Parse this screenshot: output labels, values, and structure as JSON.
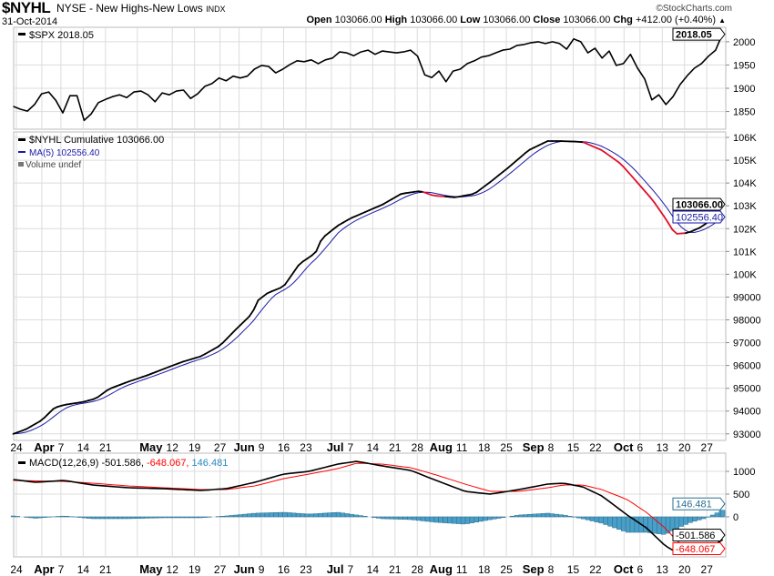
{
  "header": {
    "symbol": "$NYHL",
    "name": "NYSE - New Highs-New Lows",
    "exchange": "INDX",
    "date": "31-Oct-2014",
    "copyright": "©StockCharts.com",
    "open_label": "Open",
    "open": "103066.00",
    "high_label": "High",
    "high": "103066.00",
    "low_label": "Low",
    "low": "103066.00",
    "close_label": "Close",
    "close": "103066.00",
    "chg_label": "Chg",
    "chg": "+412.00 (+0.40%)",
    "chg_icon": "up-triangle-icon"
  },
  "colors": {
    "price": "#000000",
    "ma": "#1a1aa8",
    "below_ma": "#e0102a",
    "signal": "#ff0000",
    "histogram": "#4a9fc8",
    "grid": "#dcdcdc"
  },
  "chart_data": [
    {
      "type": "line",
      "panel": "spx",
      "legend": "$SPX 2018.05",
      "last_label": "2018.05",
      "ylim": [
        1812,
        2031
      ],
      "yticks": [
        1850,
        1900,
        1950,
        2000
      ],
      "x_domain_days": [
        -1,
        222
      ],
      "values": [
        1861,
        1855,
        1851,
        1865,
        1888,
        1892,
        1874,
        1847,
        1884,
        1884,
        1831,
        1845,
        1869,
        1876,
        1882,
        1886,
        1880,
        1892,
        1894,
        1886,
        1871,
        1890,
        1886,
        1894,
        1896,
        1878,
        1888,
        1904,
        1910,
        1922,
        1916,
        1926,
        1922,
        1926,
        1941,
        1949,
        1947,
        1933,
        1941,
        1951,
        1959,
        1957,
        1961,
        1953,
        1961,
        1965,
        1978,
        1976,
        1970,
        1978,
        1982,
        1973,
        1980,
        1978,
        1976,
        1978,
        1982,
        1969,
        1929,
        1923,
        1937,
        1914,
        1937,
        1941,
        1953,
        1959,
        1967,
        1970,
        1976,
        1982,
        1984,
        1992,
        1994,
        1998,
        2000,
        1996,
        2000,
        1996,
        1984,
        2006,
        2000,
        1976,
        1986,
        1965,
        1980,
        1949,
        1953,
        1973,
        1943,
        1920,
        1875,
        1886,
        1865,
        1882,
        1908,
        1927,
        1943,
        1953,
        1969,
        1982,
        2018.05
      ]
    },
    {
      "type": "line",
      "panel": "nyhl",
      "legend": "$NYHL Cumulative 103066.00",
      "ma_legend": "MA(5) 102556.40",
      "volume_legend": "Volume undef",
      "last_label": "103066.00",
      "ma_last_label": "102556.40",
      "ylim": [
        92713,
        106240
      ],
      "yticks": [
        {
          "v": 93000,
          "t": "93000"
        },
        {
          "v": 94000,
          "t": "94000"
        },
        {
          "v": 95000,
          "t": "95000"
        },
        {
          "v": 96000,
          "t": "96000"
        },
        {
          "v": 97000,
          "t": "97000"
        },
        {
          "v": 98000,
          "t": "98000"
        },
        {
          "v": 99000,
          "t": "99000"
        },
        {
          "v": 100000,
          "t": "100K"
        },
        {
          "v": 101000,
          "t": "101K"
        },
        {
          "v": 102000,
          "t": "102K"
        },
        {
          "v": 103000,
          "t": "103K"
        },
        {
          "v": 104000,
          "t": "104K"
        },
        {
          "v": 105000,
          "t": "105K"
        },
        {
          "v": 106000,
          "t": "106K"
        }
      ],
      "points": [
        [
          -1,
          93000
        ],
        [
          3,
          93200
        ],
        [
          8,
          93600
        ],
        [
          12,
          94150
        ],
        [
          15,
          94270
        ],
        [
          21,
          94400
        ],
        [
          25,
          94550
        ],
        [
          29,
          94960
        ],
        [
          35,
          95280
        ],
        [
          41,
          95560
        ],
        [
          46,
          95830
        ],
        [
          52,
          96150
        ],
        [
          58,
          96400
        ],
        [
          64,
          96870
        ],
        [
          69,
          97580
        ],
        [
          74,
          98260
        ],
        [
          76,
          98860
        ],
        [
          79,
          99180
        ],
        [
          84,
          99460
        ],
        [
          86,
          99860
        ],
        [
          89,
          100460
        ],
        [
          94,
          100930
        ],
        [
          96,
          101570
        ],
        [
          101,
          102130
        ],
        [
          105,
          102450
        ],
        [
          109,
          102690
        ],
        [
          115,
          103050
        ],
        [
          121,
          103530
        ],
        [
          127,
          103650
        ],
        [
          131,
          103450
        ],
        [
          138,
          103370
        ],
        [
          144,
          103530
        ],
        [
          149,
          104050
        ],
        [
          155,
          104720
        ],
        [
          161,
          105440
        ],
        [
          167,
          105840
        ],
        [
          171,
          105840
        ],
        [
          178,
          105800
        ],
        [
          184,
          105440
        ],
        [
          190,
          104840
        ],
        [
          195,
          104050
        ],
        [
          200,
          103250
        ],
        [
          204,
          102450
        ],
        [
          207,
          101770
        ],
        [
          211,
          101810
        ],
        [
          215,
          102050
        ],
        [
          219,
          102450
        ],
        [
          222,
          103066
        ]
      ]
    },
    {
      "type": "line",
      "panel": "macd",
      "legend_prefix": "MACD(12,26,9) -501.586,",
      "legend_signal": "-648.067,",
      "legend_hist": "146.481",
      "macd_last": "-501.586",
      "signal_last": "-648.067",
      "hist_last": "146.481",
      "ylim": [
        -880,
        1400
      ],
      "yticks": [
        {
          "v": 1000,
          "t": "1000"
        },
        {
          "v": 500,
          "t": "500"
        },
        {
          "v": 0,
          "t": "0"
        }
      ],
      "days": [
        -1,
        6,
        15,
        24,
        35,
        46,
        58,
        66,
        75,
        84,
        92,
        101,
        107,
        115,
        124,
        132,
        141,
        149,
        158,
        167,
        172,
        178,
        184,
        192,
        198,
        204,
        208,
        212,
        217,
        222
      ],
      "macd": [
        820,
        760,
        800,
        700,
        640,
        620,
        580,
        620,
        760,
        940,
        1000,
        1160,
        1220,
        1120,
        1020,
        800,
        560,
        500,
        600,
        720,
        740,
        660,
        460,
        40,
        -240,
        -640,
        -800,
        -800,
        -720,
        -501.586
      ],
      "signal": [
        800,
        790,
        780,
        740,
        680,
        640,
        600,
        600,
        680,
        840,
        940,
        1060,
        1180,
        1160,
        1080,
        920,
        720,
        560,
        560,
        640,
        700,
        700,
        600,
        380,
        100,
        -250,
        -560,
        -680,
        -700,
        -648.067
      ]
    }
  ],
  "x_axis": {
    "ticks": [
      {
        "label": "24",
        "day": 0,
        "month": false
      },
      {
        "label": "Apr",
        "day": 8,
        "month": true
      },
      {
        "label": "7",
        "day": 14,
        "month": false
      },
      {
        "label": "14",
        "day": 21,
        "month": false
      },
      {
        "label": "21",
        "day": 28,
        "month": false
      },
      {
        "label": "May",
        "day": 38,
        "month": true
      },
      {
        "label": "12",
        "day": 49,
        "month": false
      },
      {
        "label": "19",
        "day": 56,
        "month": false
      },
      {
        "label": "27",
        "day": 64,
        "month": false
      },
      {
        "label": "Jun",
        "day": 70,
        "month": true
      },
      {
        "label": "9",
        "day": 77,
        "month": false
      },
      {
        "label": "16",
        "day": 84,
        "month": false
      },
      {
        "label": "23",
        "day": 91,
        "month": false
      },
      {
        "label": "Jul",
        "day": 99,
        "month": true
      },
      {
        "label": "7",
        "day": 105,
        "month": false
      },
      {
        "label": "14",
        "day": 112,
        "month": false
      },
      {
        "label": "21",
        "day": 119,
        "month": false
      },
      {
        "label": "28",
        "day": 126,
        "month": false
      },
      {
        "label": "Aug",
        "day": 130,
        "month": true
      },
      {
        "label": "11",
        "day": 140,
        "month": false
      },
      {
        "label": "18",
        "day": 147,
        "month": false
      },
      {
        "label": "25",
        "day": 154,
        "month": false
      },
      {
        "label": "Sep",
        "day": 162,
        "month": true
      },
      {
        "label": "8",
        "day": 168,
        "month": false
      },
      {
        "label": "15",
        "day": 175,
        "month": false
      },
      {
        "label": "22",
        "day": 182,
        "month": false
      },
      {
        "label": "Oct",
        "day": 191,
        "month": true
      },
      {
        "label": "6",
        "day": 196,
        "month": false
      },
      {
        "label": "13",
        "day": 203,
        "month": false
      },
      {
        "label": "20",
        "day": 210,
        "month": false
      },
      {
        "label": "27",
        "day": 217,
        "month": false
      }
    ]
  }
}
